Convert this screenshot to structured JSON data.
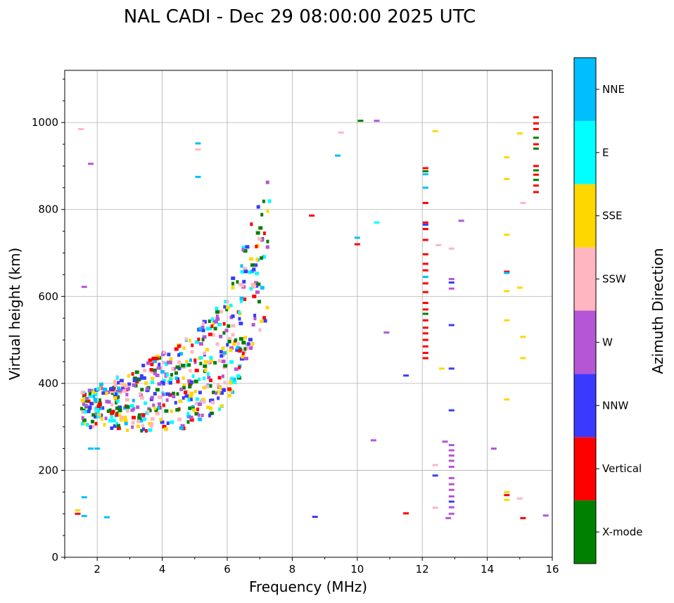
{
  "chart_data": {
    "type": "scatter",
    "title": "NAL CADI - Dec 29 08:00:00 2025 UTC",
    "xlabel": "Frequency (MHz)",
    "ylabel": "Virtual height (km)",
    "xlim": [
      1,
      16
    ],
    "ylim": [
      0,
      1120
    ],
    "grid": true,
    "x_ticks": [
      2,
      4,
      6,
      8,
      10,
      12,
      14,
      16
    ],
    "y_ticks": [
      0,
      200,
      400,
      600,
      800,
      1000
    ],
    "colorbar": {
      "label": "Azimuth Direction",
      "categories": [
        {
          "name": "X-mode",
          "color": "#008000"
        },
        {
          "name": "Vertical",
          "color": "#ff0000"
        },
        {
          "name": "NNW",
          "color": "#3a3aff"
        },
        {
          "name": "W",
          "color": "#b556d6"
        },
        {
          "name": "SSW",
          "color": "#ffb6c1"
        },
        {
          "name": "SSE",
          "color": "#ffd700"
        },
        {
          "name": "E",
          "color": "#00ffff"
        },
        {
          "name": "NNE",
          "color": "#00bfff"
        }
      ]
    },
    "cluster": {
      "description": "scattered echoes along the oblique ionogram trace",
      "path": [
        [
          1.5,
          340
        ],
        [
          2.0,
          345
        ],
        [
          3.0,
          360
        ],
        [
          4.0,
          380
        ],
        [
          5.0,
          410
        ],
        [
          6.0,
          480
        ],
        [
          6.7,
          620
        ],
        [
          7.3,
          720
        ]
      ],
      "count": 600
    },
    "points": [
      {
        "f": 8.6,
        "h": 786,
        "c": "Vertical"
      },
      {
        "f": 8.7,
        "h": 93,
        "c": "NNW"
      },
      {
        "f": 9.5,
        "h": 977,
        "c": "SSW"
      },
      {
        "f": 9.4,
        "h": 924,
        "c": "NNE"
      },
      {
        "f": 10.1,
        "h": 1004,
        "c": "X-mode"
      },
      {
        "f": 10.6,
        "h": 1004,
        "c": "W"
      },
      {
        "f": 10.0,
        "h": 735,
        "c": "NNE"
      },
      {
        "f": 10.0,
        "h": 720,
        "c": "Vertical"
      },
      {
        "f": 10.6,
        "h": 770,
        "c": "E"
      },
      {
        "f": 10.9,
        "h": 517,
        "c": "W"
      },
      {
        "f": 10.5,
        "h": 269,
        "c": "W"
      },
      {
        "f": 11.5,
        "h": 101,
        "c": "Vertical"
      },
      {
        "f": 11.5,
        "h": 418,
        "c": "NNW"
      },
      {
        "f": 12.4,
        "h": 980,
        "c": "SSE"
      },
      {
        "f": 12.1,
        "h": 895,
        "c": "Vertical"
      },
      {
        "f": 12.1,
        "h": 888,
        "c": "X-mode"
      },
      {
        "f": 12.1,
        "h": 881,
        "c": "NNE"
      },
      {
        "f": 12.1,
        "h": 850,
        "c": "NNE"
      },
      {
        "f": 12.1,
        "h": 815,
        "c": "Vertical"
      },
      {
        "f": 12.1,
        "h": 770,
        "c": "Vertical"
      },
      {
        "f": 12.1,
        "h": 765,
        "c": "NNW"
      },
      {
        "f": 12.1,
        "h": 755,
        "c": "Vertical"
      },
      {
        "f": 12.1,
        "h": 730,
        "c": "Vertical"
      },
      {
        "f": 12.5,
        "h": 718,
        "c": "SSW"
      },
      {
        "f": 12.1,
        "h": 697,
        "c": "Vertical"
      },
      {
        "f": 12.1,
        "h": 675,
        "c": "Vertical"
      },
      {
        "f": 12.1,
        "h": 660,
        "c": "Vertical"
      },
      {
        "f": 12.1,
        "h": 645,
        "c": "NNE"
      },
      {
        "f": 12.1,
        "h": 630,
        "c": "Vertical"
      },
      {
        "f": 12.1,
        "h": 610,
        "c": "Vertical"
      },
      {
        "f": 12.1,
        "h": 585,
        "c": "Vertical"
      },
      {
        "f": 12.1,
        "h": 570,
        "c": "Vertical"
      },
      {
        "f": 12.1,
        "h": 560,
        "c": "X-mode"
      },
      {
        "f": 12.1,
        "h": 545,
        "c": "Vertical"
      },
      {
        "f": 12.1,
        "h": 528,
        "c": "Vertical"
      },
      {
        "f": 12.1,
        "h": 515,
        "c": "Vertical"
      },
      {
        "f": 12.1,
        "h": 500,
        "c": "Vertical"
      },
      {
        "f": 12.1,
        "h": 485,
        "c": "Vertical"
      },
      {
        "f": 12.1,
        "h": 470,
        "c": "Vertical"
      },
      {
        "f": 12.1,
        "h": 458,
        "c": "Vertical"
      },
      {
        "f": 12.6,
        "h": 434,
        "c": "SSE"
      },
      {
        "f": 12.9,
        "h": 710,
        "c": "SSW"
      },
      {
        "f": 12.9,
        "h": 640,
        "c": "W"
      },
      {
        "f": 12.9,
        "h": 632,
        "c": "NNW"
      },
      {
        "f": 12.9,
        "h": 618,
        "c": "W"
      },
      {
        "f": 12.9,
        "h": 534,
        "c": "NNW"
      },
      {
        "f": 12.9,
        "h": 434,
        "c": "NNW"
      },
      {
        "f": 12.9,
        "h": 338,
        "c": "NNW"
      },
      {
        "f": 12.7,
        "h": 266,
        "c": "W"
      },
      {
        "f": 12.9,
        "h": 258,
        "c": "W"
      },
      {
        "f": 12.9,
        "h": 246,
        "c": "W"
      },
      {
        "f": 12.9,
        "h": 234,
        "c": "W"
      },
      {
        "f": 12.9,
        "h": 222,
        "c": "W"
      },
      {
        "f": 12.9,
        "h": 208,
        "c": "W"
      },
      {
        "f": 12.4,
        "h": 212,
        "c": "SSW"
      },
      {
        "f": 12.4,
        "h": 188,
        "c": "NNW"
      },
      {
        "f": 12.9,
        "h": 182,
        "c": "W"
      },
      {
        "f": 12.9,
        "h": 168,
        "c": "W"
      },
      {
        "f": 12.9,
        "h": 155,
        "c": "W"
      },
      {
        "f": 12.9,
        "h": 140,
        "c": "W"
      },
      {
        "f": 12.9,
        "h": 128,
        "c": "NNW"
      },
      {
        "f": 12.9,
        "h": 115,
        "c": "W"
      },
      {
        "f": 12.4,
        "h": 114,
        "c": "SSW"
      },
      {
        "f": 12.9,
        "h": 100,
        "c": "W"
      },
      {
        "f": 12.8,
        "h": 90,
        "c": "W"
      },
      {
        "f": 13.2,
        "h": 774,
        "c": "W"
      },
      {
        "f": 14.2,
        "h": 250,
        "c": "W"
      },
      {
        "f": 14.6,
        "h": 920,
        "c": "SSE"
      },
      {
        "f": 14.6,
        "h": 870,
        "c": "SSE"
      },
      {
        "f": 14.6,
        "h": 742,
        "c": "SSE"
      },
      {
        "f": 14.6,
        "h": 657,
        "c": "Vertical"
      },
      {
        "f": 14.6,
        "h": 654,
        "c": "NNE"
      },
      {
        "f": 14.6,
        "h": 612,
        "c": "SSE"
      },
      {
        "f": 14.6,
        "h": 545,
        "c": "SSE"
      },
      {
        "f": 14.6,
        "h": 363,
        "c": "SSE"
      },
      {
        "f": 14.6,
        "h": 150,
        "c": "SSE"
      },
      {
        "f": 14.6,
        "h": 143,
        "c": "Vertical"
      },
      {
        "f": 14.6,
        "h": 132,
        "c": "SSE"
      },
      {
        "f": 15.0,
        "h": 975,
        "c": "SSE"
      },
      {
        "f": 15.0,
        "h": 620,
        "c": "SSE"
      },
      {
        "f": 15.1,
        "h": 507,
        "c": "SSE"
      },
      {
        "f": 15.1,
        "h": 458,
        "c": "SSE"
      },
      {
        "f": 15.1,
        "h": 815,
        "c": "SSW"
      },
      {
        "f": 15.0,
        "h": 135,
        "c": "SSW"
      },
      {
        "f": 15.1,
        "h": 90,
        "c": "Vertical"
      },
      {
        "f": 15.8,
        "h": 96,
        "c": "W"
      },
      {
        "f": 15.5,
        "h": 1012,
        "c": "Vertical"
      },
      {
        "f": 15.5,
        "h": 998,
        "c": "Vertical"
      },
      {
        "f": 15.5,
        "h": 985,
        "c": "Vertical"
      },
      {
        "f": 15.5,
        "h": 965,
        "c": "X-mode"
      },
      {
        "f": 15.5,
        "h": 950,
        "c": "Vertical"
      },
      {
        "f": 15.5,
        "h": 940,
        "c": "X-mode"
      },
      {
        "f": 15.5,
        "h": 900,
        "c": "Vertical"
      },
      {
        "f": 15.5,
        "h": 890,
        "c": "X-mode"
      },
      {
        "f": 15.5,
        "h": 880,
        "c": "Vertical"
      },
      {
        "f": 15.5,
        "h": 868,
        "c": "X-mode"
      },
      {
        "f": 15.5,
        "h": 855,
        "c": "Vertical"
      },
      {
        "f": 15.5,
        "h": 840,
        "c": "Vertical"
      },
      {
        "f": 1.5,
        "h": 985,
        "c": "SSW"
      },
      {
        "f": 1.8,
        "h": 905,
        "c": "W"
      },
      {
        "f": 1.6,
        "h": 622,
        "c": "W"
      },
      {
        "f": 5.1,
        "h": 952,
        "c": "NNE"
      },
      {
        "f": 5.1,
        "h": 938,
        "c": "SSW"
      },
      {
        "f": 5.1,
        "h": 875,
        "c": "NNE"
      },
      {
        "f": 1.4,
        "h": 108,
        "c": "SSE"
      },
      {
        "f": 1.4,
        "h": 100,
        "c": "Vertical"
      },
      {
        "f": 1.6,
        "h": 95,
        "c": "NNE"
      },
      {
        "f": 1.6,
        "h": 138,
        "c": "NNE"
      },
      {
        "f": 2.3,
        "h": 92,
        "c": "NNE"
      },
      {
        "f": 1.8,
        "h": 250,
        "c": "NNE"
      },
      {
        "f": 2.0,
        "h": 250,
        "c": "NNE"
      }
    ]
  }
}
